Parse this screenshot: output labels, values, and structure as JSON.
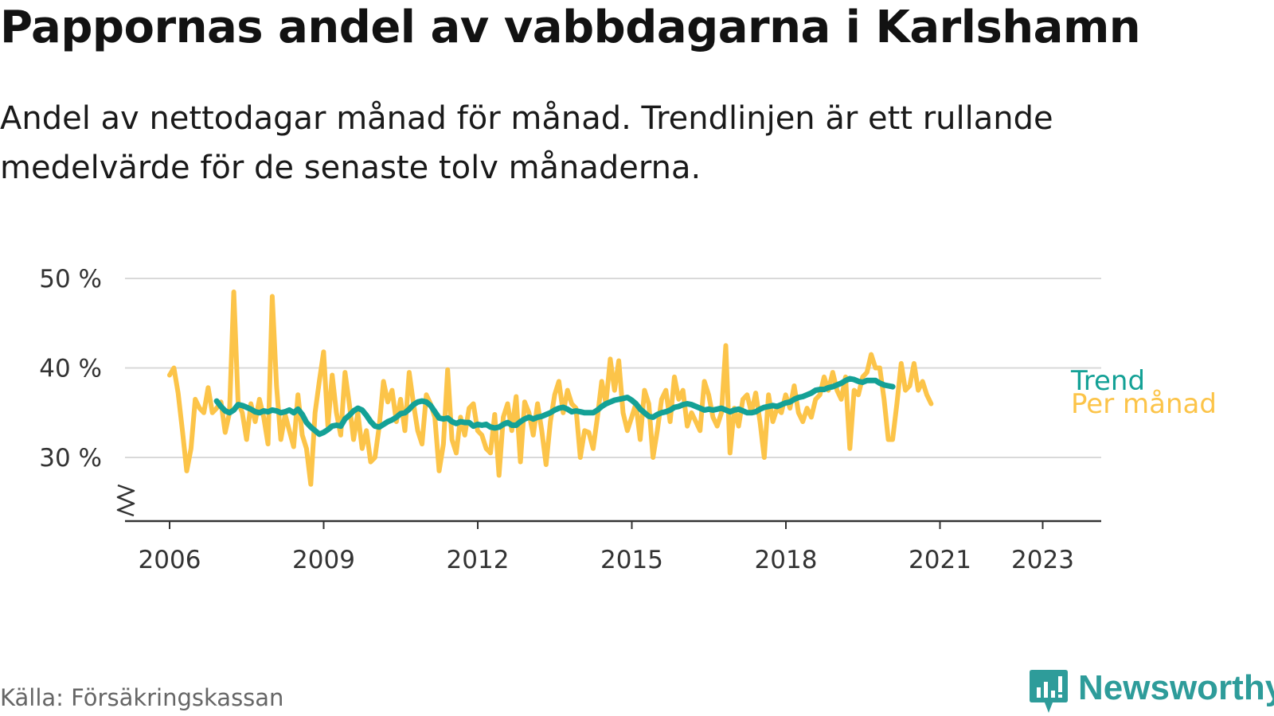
{
  "title": "Pappornas andel av vabbdagarna i Karlshamn",
  "subtitle": "Andel av nettodagar månad för månad. Trendlinjen är ett rullande medelvärde för de senaste tolv månaderna.",
  "source": "Källa: Försäkringskassan",
  "brand": "Newsworthy",
  "colors": {
    "monthly": "#fcc449",
    "trend": "#14a196",
    "grid": "#d9d9d9",
    "axis": "#333333",
    "brand": "#2e9c9a"
  },
  "chart_data": {
    "type": "line",
    "title": "Pappornas andel av vabbdagarna i Karlshamn",
    "xlabel": "",
    "ylabel": "",
    "ylim": [
      22,
      52
    ],
    "y_ticks": [
      30,
      40,
      50
    ],
    "y_tick_labels": [
      "30 %",
      "40 %",
      "50 %"
    ],
    "x_ticks": [
      2006,
      2009,
      2012,
      2015,
      2018,
      2021,
      2023
    ],
    "x_tick_labels": [
      "2006",
      "2009",
      "2012",
      "2015",
      "2018",
      "2021",
      "2023"
    ],
    "x_range": [
      2005.1,
      2024.2
    ],
    "axis_break": true,
    "grid": true,
    "series": [
      {
        "name": "Per månad",
        "label": "Per månad",
        "x_start": 2006.0,
        "step": 0.0833,
        "values": [
          39.2,
          40.0,
          37.2,
          33.0,
          28.5,
          31.0,
          36.5,
          35.5,
          35.0,
          37.8,
          35.0,
          35.5,
          36.2,
          32.8,
          35.0,
          48.5,
          36.2,
          35.0,
          32.0,
          36.0,
          34.0,
          36.5,
          34.5,
          31.5,
          48.0,
          38.0,
          32.0,
          34.8,
          33.0,
          31.2,
          37.0,
          32.5,
          31.0,
          27.0,
          35.0,
          38.5,
          41.8,
          33.5,
          39.2,
          35.0,
          32.5,
          39.5,
          36.0,
          32.0,
          35.0,
          31.0,
          33.0,
          29.5,
          30.0,
          33.5,
          38.5,
          36.2,
          37.5,
          34.0,
          36.5,
          33.0,
          39.5,
          36.0,
          33.0,
          31.5,
          37.0,
          36.0,
          34.5,
          28.5,
          31.5,
          39.8,
          32.0,
          30.5,
          34.5,
          32.5,
          35.5,
          36.0,
          33.0,
          32.5,
          31.0,
          30.5,
          34.8,
          28.0,
          34.5,
          36.0,
          33.0,
          36.8,
          29.5,
          36.2,
          35.0,
          32.5,
          36.0,
          33.0,
          29.2,
          34.0,
          37.0,
          38.5,
          35.0,
          37.5,
          36.0,
          35.5,
          30.0,
          33.0,
          32.8,
          31.0,
          34.5,
          38.5,
          36.0,
          41.0,
          37.5,
          40.8,
          35.0,
          33.0,
          34.5,
          36.0,
          32.0,
          37.5,
          36.0,
          30.0,
          33.0,
          36.5,
          37.5,
          34.0,
          39.0,
          36.5,
          37.5,
          33.5,
          35.0,
          34.0,
          33.0,
          38.5,
          37.0,
          34.5,
          33.5,
          35.0,
          42.5,
          30.5,
          35.5,
          33.5,
          36.5,
          37.0,
          35.0,
          37.2,
          34.0,
          30.0,
          37.0,
          34.0,
          35.5,
          35.0,
          37.0,
          35.5,
          38.0,
          35.0,
          34.0,
          35.5,
          34.5,
          36.5,
          37.0,
          39.0,
          37.5,
          39.5,
          37.5,
          36.5,
          39.0,
          31.0,
          37.5,
          37.0,
          39.0,
          39.5,
          41.5,
          40.0,
          40.0,
          36.5,
          32.0,
          32.0,
          36.0,
          40.5,
          37.5,
          38.0,
          40.5,
          37.5,
          38.5,
          37.0,
          36.0
        ]
      },
      {
        "name": "Trend",
        "label": "Trend",
        "x_start": 2006.917,
        "step": 0.0833,
        "values": [
          36.3,
          35.7,
          35.2,
          35.0,
          35.3,
          35.9,
          35.8,
          35.6,
          35.4,
          35.1,
          35.0,
          35.2,
          35.1,
          35.3,
          35.2,
          35.0,
          35.1,
          35.3,
          35.0,
          35.4,
          34.8,
          33.9,
          33.4,
          33.0,
          32.6,
          32.8,
          33.1,
          33.5,
          33.6,
          33.5,
          34.3,
          34.7,
          35.2,
          35.5,
          35.3,
          34.7,
          34.0,
          33.5,
          33.4,
          33.7,
          34.0,
          34.2,
          34.5,
          34.9,
          35.0,
          35.4,
          35.9,
          36.2,
          36.3,
          36.2,
          35.8,
          35.1,
          34.4,
          34.3,
          34.4,
          34.0,
          33.8,
          34.0,
          33.9,
          33.9,
          33.5,
          33.7,
          33.6,
          33.7,
          33.4,
          33.3,
          33.4,
          33.7,
          33.9,
          33.6,
          33.6,
          34.0,
          34.3,
          34.5,
          34.3,
          34.5,
          34.6,
          34.8,
          35.0,
          35.3,
          35.5,
          35.6,
          35.4,
          35.1,
          35.2,
          35.1,
          35.0,
          35.0,
          35.0,
          35.3,
          35.7,
          36.0,
          36.2,
          36.4,
          36.5,
          36.6,
          36.7,
          36.4,
          36.0,
          35.4,
          35.0,
          34.6,
          34.5,
          34.8,
          35.0,
          35.1,
          35.3,
          35.6,
          35.7,
          35.9,
          36.0,
          35.9,
          35.7,
          35.5,
          35.3,
          35.4,
          35.3,
          35.4,
          35.5,
          35.3,
          35.1,
          35.3,
          35.4,
          35.2,
          35.0,
          35.0,
          35.1,
          35.4,
          35.6,
          35.7,
          35.8,
          35.7,
          35.9,
          36.1,
          36.2,
          36.5,
          36.7,
          36.8,
          37.0,
          37.2,
          37.5,
          37.6,
          37.6,
          37.8,
          37.9,
          38.1,
          38.3,
          38.6,
          38.8,
          38.7,
          38.5,
          38.4,
          38.6,
          38.6,
          38.6,
          38.3,
          38.1,
          38.0,
          37.9
        ]
      }
    ]
  }
}
